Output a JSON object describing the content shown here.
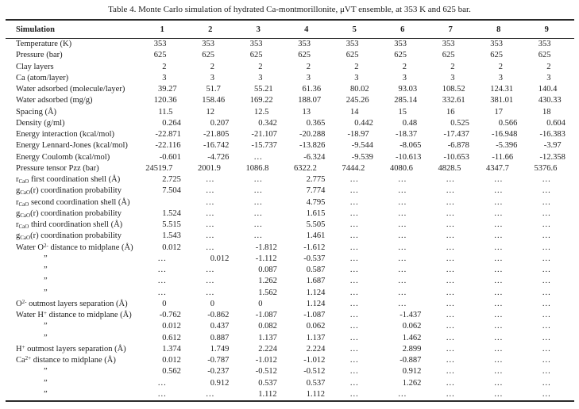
{
  "title": "Table 4. Monte Carlo simulation of hydrated Ca-montmorillonite, μVT ensemble, at 353 K and 625 bar.",
  "table": {
    "ellipsis": "...",
    "ditto": "”",
    "header": {
      "label": "Simulation",
      "columns": [
        "1",
        "2",
        "3",
        "4",
        "5",
        "6",
        "7",
        "8",
        "9"
      ]
    },
    "rows": [
      {
        "label": "Temperature (K)",
        "values": [
          "353",
          "353",
          "353",
          "353",
          "353",
          "353",
          "353",
          "353",
          "353"
        ]
      },
      {
        "label": "Pressure (bar)",
        "values": [
          "625",
          "625",
          "625",
          "625",
          "625",
          "625",
          "625",
          "625",
          "625"
        ]
      },
      {
        "label": "Clay layers",
        "values": [
          "2",
          "2",
          "2",
          "2",
          "2",
          "2",
          "2",
          "2",
          "2"
        ]
      },
      {
        "label": "Ca (atom/layer)",
        "values": [
          "3",
          "3",
          "3",
          "3",
          "3",
          "3",
          "3",
          "3",
          "3"
        ]
      },
      {
        "label": "Water adsorbed (molecule/layer)",
        "values": [
          "39.27",
          "51.7",
          "55.21",
          "61.36",
          "80.02",
          "93.03",
          "108.52",
          "124.31",
          "140.4"
        ]
      },
      {
        "label": "Water adsorbed (mg/g)",
        "values": [
          "120.36",
          "158.46",
          "169.22",
          "188.07",
          "245.26",
          "285.14",
          "332.61",
          "381.01",
          "430.33"
        ]
      },
      {
        "label": "Spacing (Å)",
        "values": [
          "11.5",
          "12",
          "12.5",
          "13",
          "14",
          "15",
          "16",
          "17",
          "18"
        ]
      },
      {
        "label": "Density (g/ml)",
        "values": [
          "0.264",
          "0.207",
          "0.342",
          "0.365",
          "0.442",
          "0.48",
          "0.525",
          "0.566",
          "0.604"
        ]
      },
      {
        "label": "Energy interaction (kcal/mol)",
        "values": [
          "-22.871",
          "-21.805",
          "-21.107",
          "-20.288",
          "-18.97",
          "-18.37",
          "-17.437",
          "-16.948",
          "-16.383"
        ]
      },
      {
        "label": "Energy Lennard-Jones (kcal/mol)",
        "values": [
          "-22.116",
          "-16.742",
          "-15.737",
          "-13.826",
          "-9.544",
          "-8.065",
          "-6.878",
          "-5.396",
          "-3.97"
        ]
      },
      {
        "label": "Energy Coulomb (kcal/mol)",
        "values": [
          "-0.601",
          "-4.726",
          "...",
          "-6.324",
          "-9.539",
          "-10.613",
          "-10.653",
          "-11.66",
          "-12.358"
        ]
      },
      {
        "label": "Pressure tensor Pzz (bar)",
        "values": [
          "24519.7",
          "2001.9",
          "1086.8",
          "6322.2",
          "7444.2",
          "4080.6",
          "4828.5",
          "4347.7",
          "5376.6"
        ]
      },
      {
        "label": "r_{CaO} first coordination shell (Å)",
        "values": [
          "2.725",
          "...",
          "...",
          "2.775",
          "...",
          "...",
          "...",
          "...",
          "..."
        ]
      },
      {
        "label": "g_{CaO}(r) coordination probability",
        "values": [
          "7.504",
          "...",
          "...",
          "7.774",
          "...",
          "...",
          "...",
          "...",
          "..."
        ]
      },
      {
        "label": "r_{CaO} second coordination shell (Å)",
        "values": [
          "",
          "...",
          "...",
          "4.795",
          "...",
          "...",
          "...",
          "...",
          "..."
        ]
      },
      {
        "label": "g_{CaO}(r) coordination probability",
        "values": [
          "1.524",
          "...",
          "...",
          "1.615",
          "...",
          "...",
          "...",
          "...",
          "..."
        ]
      },
      {
        "label": "r_{CaO} third coordination shell (Å)",
        "values": [
          "5.515",
          "...",
          "...",
          "5.505",
          "...",
          "...",
          "...",
          "...",
          "..."
        ]
      },
      {
        "label": "g_{CaO}(r) coordination probability",
        "values": [
          "1.543",
          "...",
          "...",
          "1.461",
          "...",
          "...",
          "...",
          "...",
          "..."
        ]
      },
      {
        "label": "Water O^{2-} distance to midplane (Å)",
        "values": [
          "0.012",
          "...",
          "-1.812",
          "-1.612",
          "...",
          "...",
          "...",
          "...",
          "..."
        ]
      },
      {
        "label": "”",
        "values": [
          "...",
          "0.012",
          "-1.112",
          "-0.537",
          "...",
          "...",
          "...",
          "...",
          "..."
        ]
      },
      {
        "label": "”",
        "values": [
          "...",
          "...",
          "0.087",
          "0.587",
          "...",
          "...",
          "...",
          "...",
          "..."
        ]
      },
      {
        "label": "”",
        "values": [
          "...",
          "...",
          "1.262",
          "1.687",
          "...",
          "...",
          "...",
          "...",
          "..."
        ]
      },
      {
        "label": "”",
        "values": [
          "...",
          "...",
          "1.562",
          "1.124",
          "...",
          "...",
          "...",
          "...",
          "..."
        ]
      },
      {
        "label": "O^{2-} outmost layers separation (Å)",
        "values": [
          "0",
          "0",
          "0",
          "1.124",
          "...",
          "...",
          "...",
          "...",
          "..."
        ]
      },
      {
        "label": "Water H^{+} distance to midplane (Å)",
        "values": [
          "-0.762",
          "-0.862",
          "-1.087",
          "-1.087",
          "...",
          "-1.437",
          "...",
          "...",
          "..."
        ]
      },
      {
        "label": "”",
        "values": [
          "0.012",
          "0.437",
          "0.082",
          "0.062",
          "...",
          "0.062",
          "...",
          "...",
          "..."
        ]
      },
      {
        "label": "”",
        "values": [
          "0.612",
          "0.887",
          "1.137",
          "1.137",
          "...",
          "1.462",
          "...",
          "...",
          "..."
        ]
      },
      {
        "label": "H^{+} outmost layers separation (Å)",
        "values": [
          "1.374",
          "1.749",
          "2.224",
          "2.224",
          "...",
          "2.899",
          "...",
          "...",
          "..."
        ]
      },
      {
        "label": "Ca^{2+} distance to midplane (Å)",
        "values": [
          "0.012",
          "-0.787",
          "-1.012",
          "-1.012",
          "...",
          "-0.887",
          "...",
          "...",
          "..."
        ]
      },
      {
        "label": "”",
        "values": [
          "0.562",
          "-0.237",
          "-0.512",
          "-0.512",
          "...",
          "0.912",
          "...",
          "...",
          "..."
        ]
      },
      {
        "label": "”",
        "values": [
          "...",
          "0.912",
          "0.537",
          "0.537",
          "...",
          "1.262",
          "...",
          "...",
          "..."
        ]
      },
      {
        "label": "”",
        "values": [
          "...",
          "...",
          "1.112",
          "1.112",
          "...",
          "...",
          "...",
          "...",
          "..."
        ]
      }
    ]
  }
}
